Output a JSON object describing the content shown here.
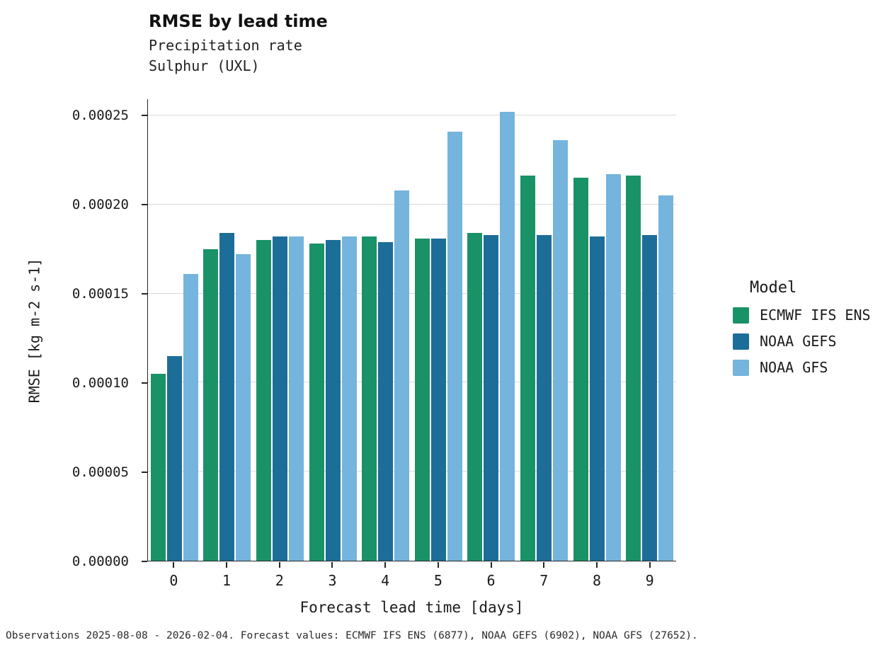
{
  "chart_data": {
    "type": "bar",
    "title": "RMSE by lead time",
    "subtitle1": "Precipitation rate",
    "subtitle2": "Sulphur (UXL)",
    "xlabel": "Forecast lead time [days]",
    "ylabel": "RMSE [kg m-2 s-1]",
    "legend_title": "Model",
    "categories": [
      "0",
      "1",
      "2",
      "3",
      "4",
      "5",
      "6",
      "7",
      "8",
      "9"
    ],
    "series": [
      {
        "name": "ECMWF IFS ENS",
        "color": "#1a9268",
        "values": [
          0.000105,
          0.000175,
          0.00018,
          0.000178,
          0.000182,
          0.000181,
          0.000184,
          0.000216,
          0.000215,
          0.000216
        ]
      },
      {
        "name": "NOAA GEFS",
        "color": "#1d6d99",
        "values": [
          0.000115,
          0.000184,
          0.000182,
          0.00018,
          0.000179,
          0.000181,
          0.000183,
          0.000183,
          0.000182,
          0.000183
        ]
      },
      {
        "name": "NOAA GFS",
        "color": "#74b4dd",
        "values": [
          0.000161,
          0.000172,
          0.000182,
          0.000182,
          0.000208,
          0.000241,
          0.000252,
          0.000236,
          0.000217,
          0.000205
        ]
      }
    ],
    "yticks": [
      {
        "label": "0.00000",
        "value": 0
      },
      {
        "label": "0.00005",
        "value": 5e-05
      },
      {
        "label": "0.00010",
        "value": 0.0001
      },
      {
        "label": "0.00015",
        "value": 0.00015
      },
      {
        "label": "0.00020",
        "value": 0.0002
      },
      {
        "label": "0.00025",
        "value": 0.00025
      }
    ],
    "ylim": [
      0,
      0.0002591
    ],
    "grid": true,
    "legend_position": "right",
    "footer": "Observations 2025-08-08 - 2026-02-04. Forecast values: ECMWF IFS ENS (6877), NOAA GEFS (6902), NOAA GFS (27652)."
  }
}
